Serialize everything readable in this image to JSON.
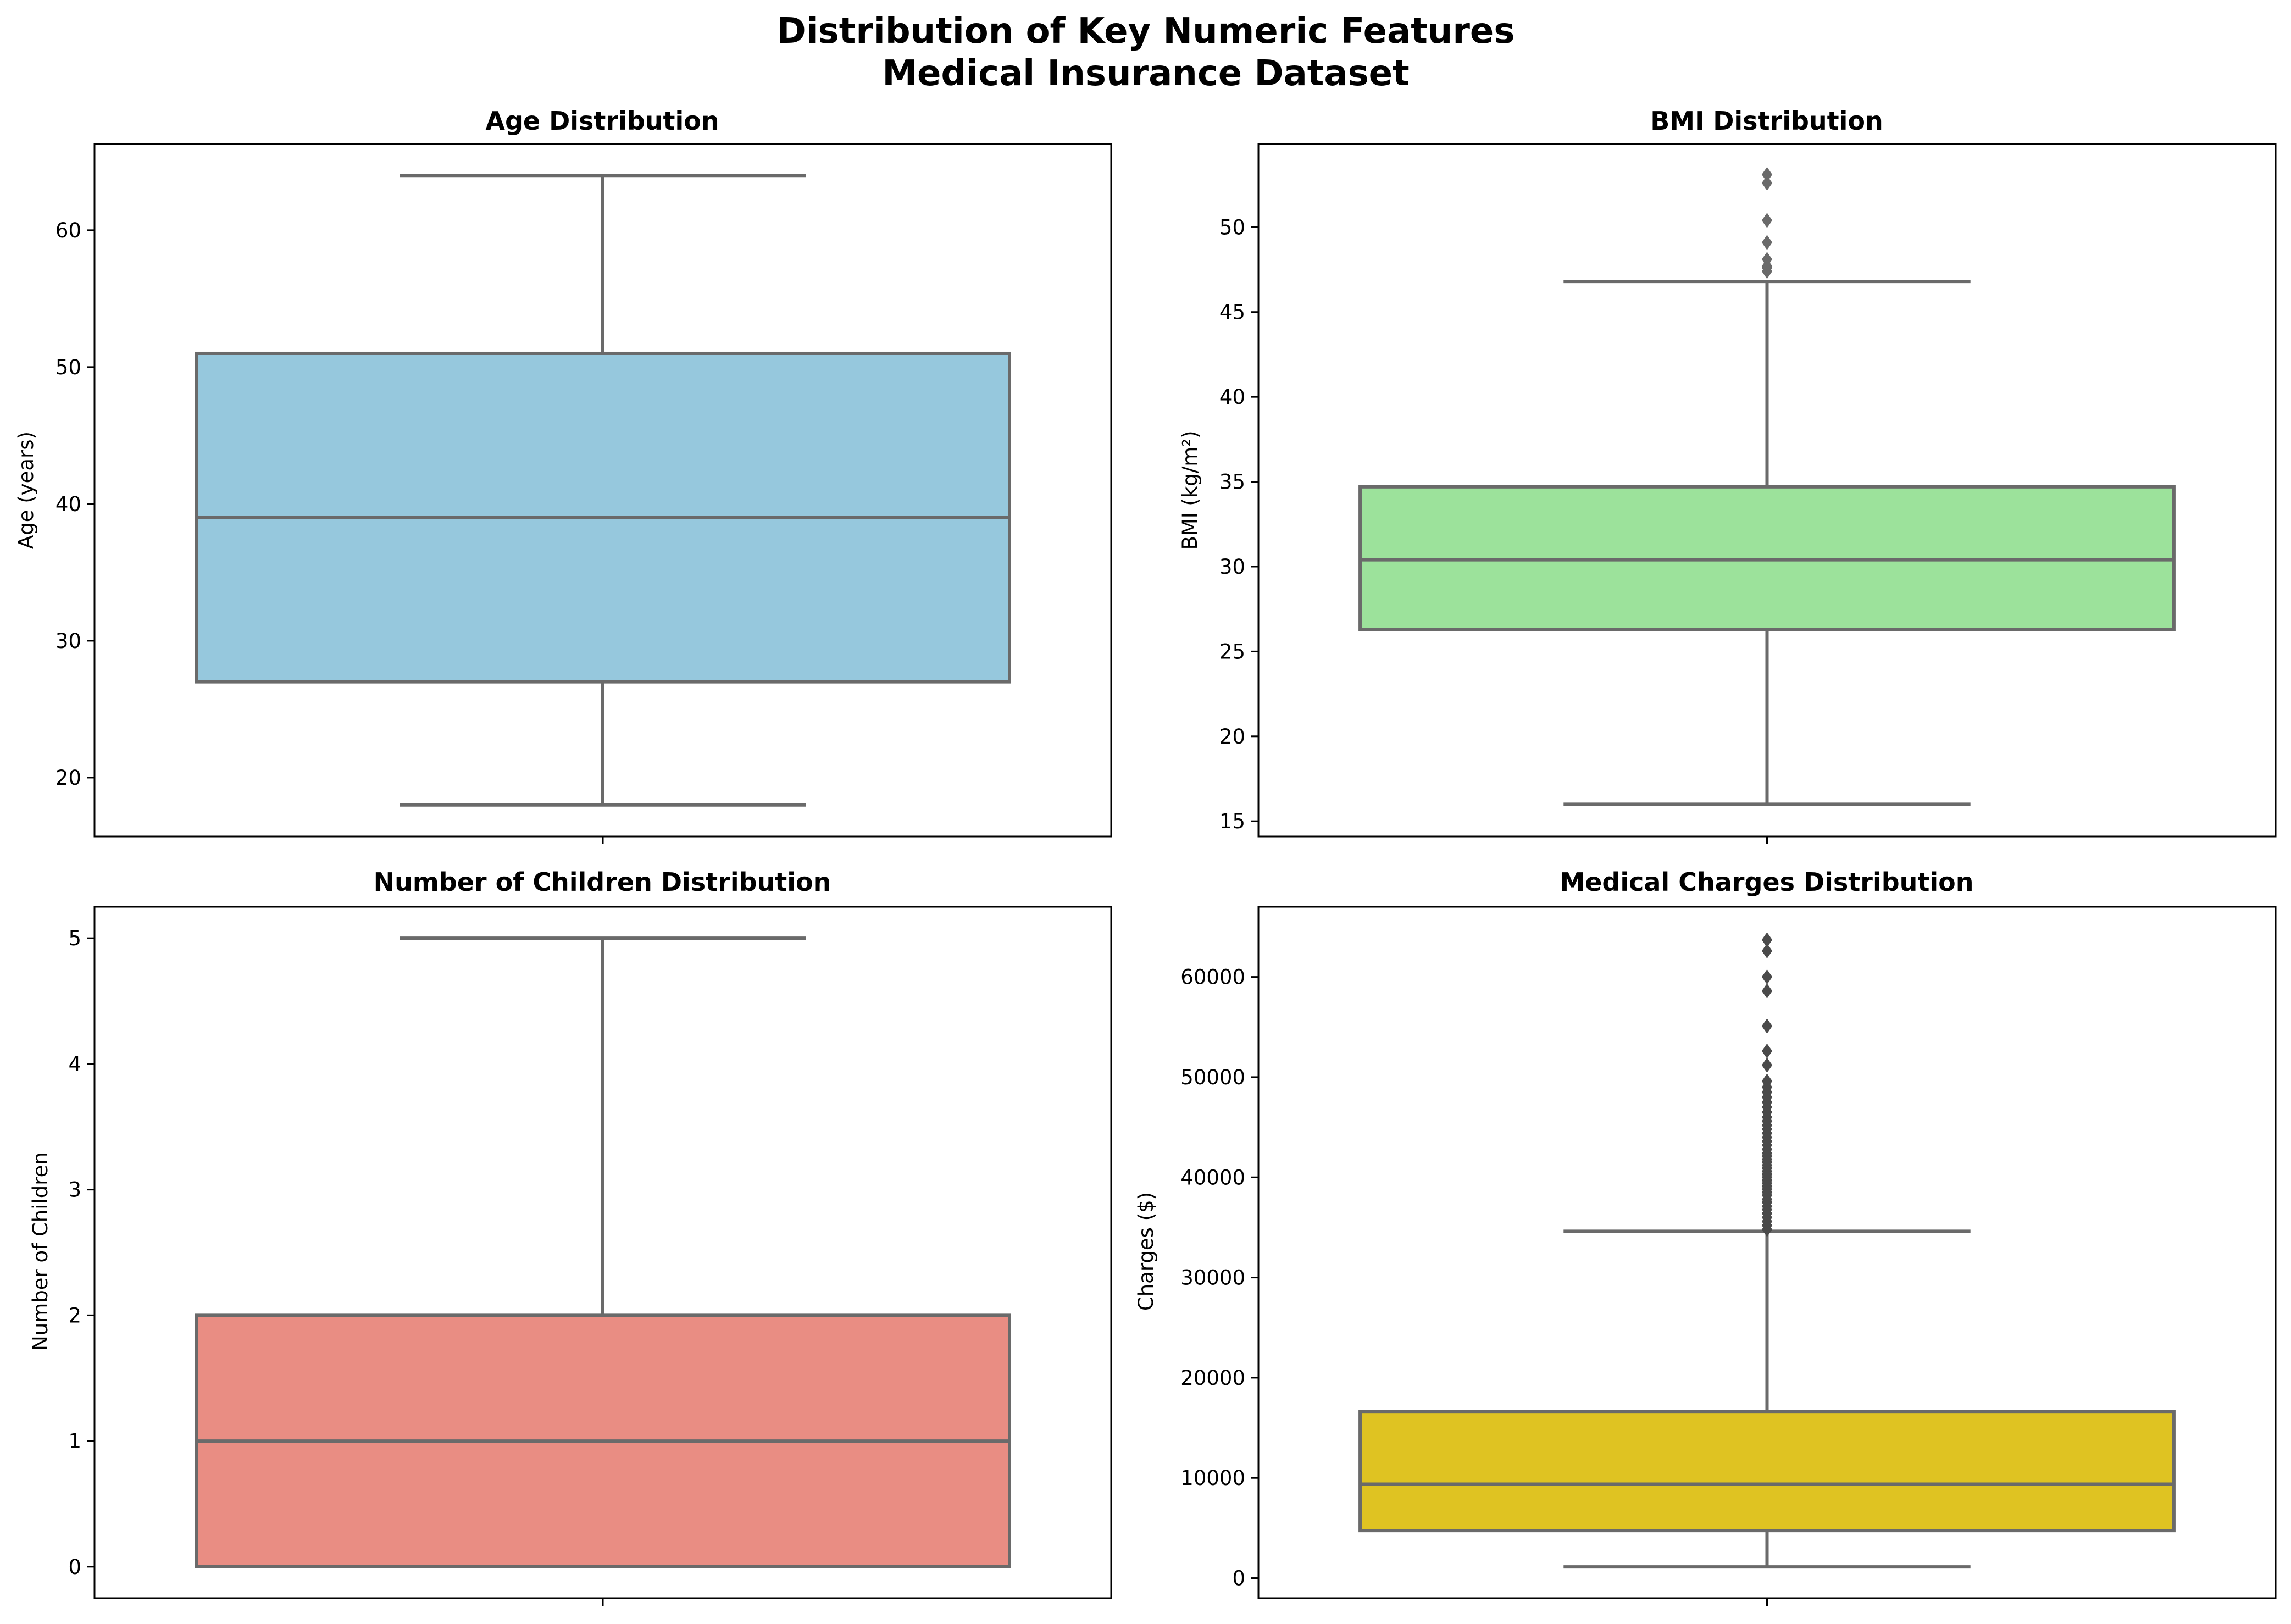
{
  "figure": {
    "title_line1": "Distribution of Key Numeric Features",
    "title_line2": "Medical Insurance Dataset"
  },
  "chart_data": [
    {
      "type": "box",
      "title": "Age Distribution",
      "ylabel": "Age (years)",
      "xlabel": "",
      "ylim": [
        15.7,
        66.3
      ],
      "yticks": [
        20,
        30,
        40,
        50,
        60
      ],
      "ytick_labels": [
        "20",
        "30",
        "40",
        "50",
        "60"
      ],
      "color": "#96c8dd",
      "flier_color": "#6a6a6a",
      "stats": {
        "whisker_low": 18,
        "q1": 27,
        "median": 39,
        "q3": 51,
        "whisker_high": 64
      },
      "outliers": []
    },
    {
      "type": "box",
      "title": "BMI Distribution",
      "ylabel": "BMI (kg/m²)",
      "xlabel": "",
      "ylim": [
        14.1,
        54.9
      ],
      "yticks": [
        15,
        20,
        25,
        30,
        35,
        40,
        45,
        50
      ],
      "ytick_labels": [
        "15",
        "20",
        "25",
        "30",
        "35",
        "40",
        "45",
        "50"
      ],
      "color": "#9ce29b",
      "flier_color": "#6a6a6a",
      "stats": {
        "whisker_low": 16.0,
        "q1": 26.3,
        "median": 30.4,
        "q3": 34.7,
        "whisker_high": 46.8
      },
      "outliers": [
        47.4,
        47.6,
        47.7,
        48.1,
        49.1,
        50.4,
        52.6,
        53.1
      ]
    },
    {
      "type": "box",
      "title": "Number of Children Distribution",
      "ylabel": "Number of Children",
      "xlabel": "",
      "ylim": [
        -0.25,
        5.25
      ],
      "yticks": [
        0,
        1,
        2,
        3,
        4,
        5
      ],
      "ytick_labels": [
        "0",
        "1",
        "2",
        "3",
        "4",
        "5"
      ],
      "color": "#e98d83",
      "flier_color": "#6a6a6a",
      "stats": {
        "whisker_low": 0,
        "q1": 0,
        "median": 1,
        "q3": 2,
        "whisker_high": 5
      },
      "outliers": []
    },
    {
      "type": "box",
      "title": "Medical Charges Distribution",
      "ylabel": "Charges ($)",
      "xlabel": "",
      "ylim": [
        -2000,
        67000
      ],
      "yticks": [
        0,
        10000,
        20000,
        30000,
        40000,
        50000,
        60000
      ],
      "ytick_labels": [
        "0",
        "10000",
        "20000",
        "30000",
        "40000",
        "50000",
        "60000"
      ],
      "color": "#dfc322",
      "flier_color": "#4a4a4a",
      "stats": {
        "whisker_low": 1122,
        "q1": 4740,
        "median": 9382,
        "q3": 16640,
        "whisker_high": 34620
      },
      "outliers": [
        34800,
        35200,
        35600,
        36000,
        36400,
        36800,
        37100,
        37500,
        37800,
        38200,
        38500,
        38800,
        39100,
        39400,
        39700,
        40000,
        40300,
        40600,
        40900,
        41200,
        41500,
        41800,
        42100,
        42400,
        42800,
        43200,
        43600,
        44000,
        44400,
        44800,
        45200,
        45600,
        46000,
        46500,
        47000,
        47500,
        48000,
        48500,
        49000,
        49600,
        51200,
        52600,
        55100,
        58600,
        60000,
        62600,
        63700
      ]
    }
  ]
}
